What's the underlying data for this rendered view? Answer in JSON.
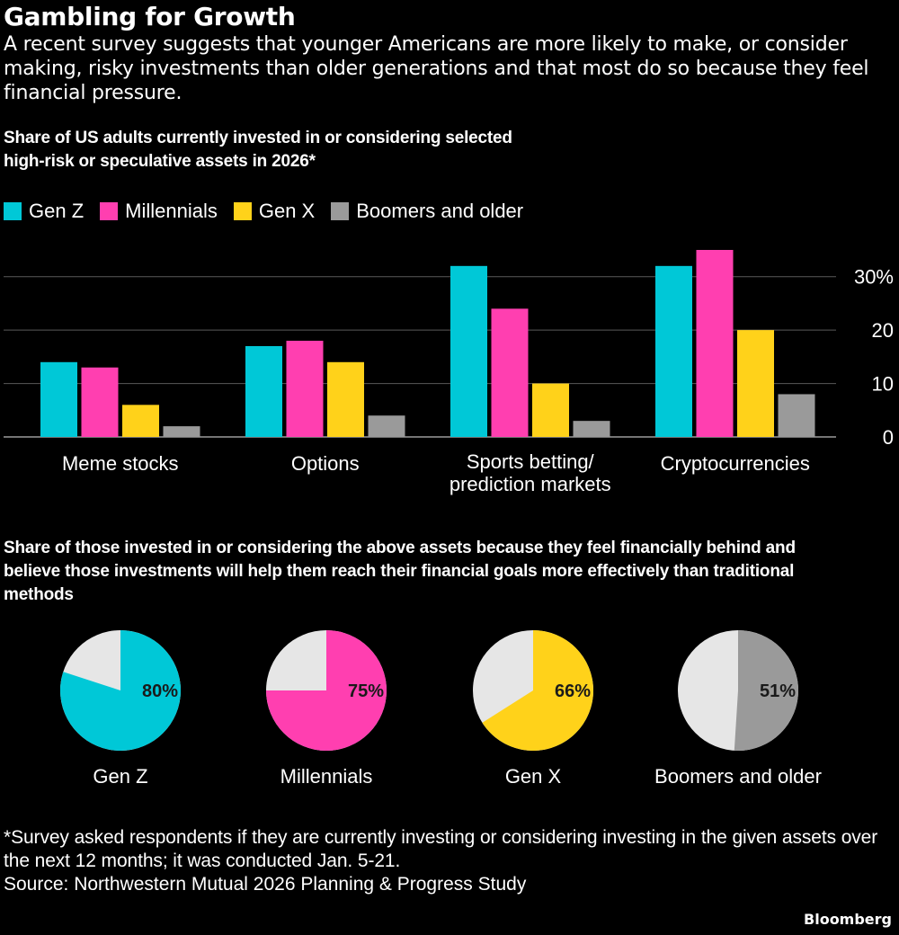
{
  "title": "Gambling for Growth",
  "subtitle": "A recent survey suggests that younger Americans are more likely to make, or consider making, risky investments than older generations and that most do so because they feel financial pressure.",
  "colors": {
    "gen_z": "#00c8d7",
    "millennials": "#ff3fb0",
    "gen_x": "#ffd21a",
    "boomers": "#9a9a9a",
    "pie_remainder": "#e6e6e6",
    "gridline": "#5a5a5a",
    "background": "#000000"
  },
  "chart_data": [
    {
      "type": "bar",
      "title": "Share of US adults currently invested in or considering selected high-risk or speculative assets in 2026*",
      "categories": [
        "Meme stocks",
        "Options",
        "Sports betting/ prediction markets",
        "Cryptocurrencies"
      ],
      "category_lines": [
        [
          "Meme stocks"
        ],
        [
          "Options"
        ],
        [
          "Sports betting/",
          "prediction markets"
        ],
        [
          "Cryptocurrencies"
        ]
      ],
      "series": [
        {
          "name": "Gen Z",
          "color": "#00c8d7",
          "values": [
            14,
            17,
            32,
            32
          ]
        },
        {
          "name": "Millennials",
          "color": "#ff3fb0",
          "values": [
            13,
            18,
            24,
            35
          ]
        },
        {
          "name": "Gen X",
          "color": "#ffd21a",
          "values": [
            6,
            14,
            10,
            20
          ]
        },
        {
          "name": "Boomers and older",
          "color": "#9a9a9a",
          "values": [
            2,
            4,
            3,
            8
          ]
        }
      ],
      "ylim": [
        0,
        35
      ],
      "yticks": [
        0,
        10,
        20,
        30
      ],
      "ytick_labels": [
        "0",
        "10",
        "20",
        "30%"
      ],
      "y_axis_side": "right",
      "grid": true,
      "legend_position": "top-left"
    },
    {
      "type": "pie",
      "title": "Share of those invested in or considering the above assets because they feel financially behind and believe those investments will help them reach their financial goals more effectively than traditional methods",
      "pies": [
        {
          "name": "Gen Z",
          "value": 80,
          "label": "80%",
          "color": "#00c8d7"
        },
        {
          "name": "Millennials",
          "value": 75,
          "label": "75%",
          "color": "#ff3fb0"
        },
        {
          "name": "Gen X",
          "value": 66,
          "label": "66%",
          "color": "#ffd21a"
        },
        {
          "name": "Boomers and older",
          "value": 51,
          "label": "51%",
          "color": "#9a9a9a"
        }
      ],
      "remainder_color": "#e6e6e6"
    }
  ],
  "footnote": "*Survey asked respondents if they are currently investing or considering investing in the given assets over the next 12 months; it was conducted Jan. 5-21.",
  "source": "Source: Northwestern Mutual 2026 Planning & Progress Study",
  "brand": "Bloomberg"
}
